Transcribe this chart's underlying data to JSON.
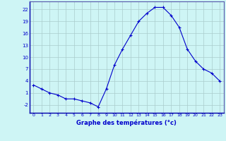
{
  "hours": [
    0,
    1,
    2,
    3,
    4,
    5,
    6,
    7,
    8,
    9,
    10,
    11,
    12,
    13,
    14,
    15,
    16,
    17,
    18,
    19,
    20,
    21,
    22,
    23
  ],
  "temps": [
    3.0,
    2.0,
    1.0,
    0.5,
    -0.5,
    -0.5,
    -1.0,
    -1.5,
    -2.5,
    2.0,
    8.0,
    12.0,
    15.5,
    19.0,
    21.0,
    22.5,
    22.5,
    20.5,
    17.5,
    12.0,
    9.0,
    7.0,
    6.0,
    4.0
  ],
  "line_color": "#0000cc",
  "marker": "+",
  "bg_color": "#cef5f5",
  "grid_color": "#aacccc",
  "xlabel": "Graphe des températures (°c)",
  "xlabel_color": "#0000cc",
  "tick_color": "#0000cc",
  "ylim": [
    -4,
    24
  ],
  "yticks": [
    -2,
    1,
    4,
    7,
    10,
    13,
    16,
    19,
    22
  ],
  "xlim": [
    -0.5,
    23.5
  ],
  "xticks": [
    0,
    1,
    2,
    3,
    4,
    5,
    6,
    7,
    8,
    9,
    10,
    11,
    12,
    13,
    14,
    15,
    16,
    17,
    18,
    19,
    20,
    21,
    22,
    23
  ]
}
